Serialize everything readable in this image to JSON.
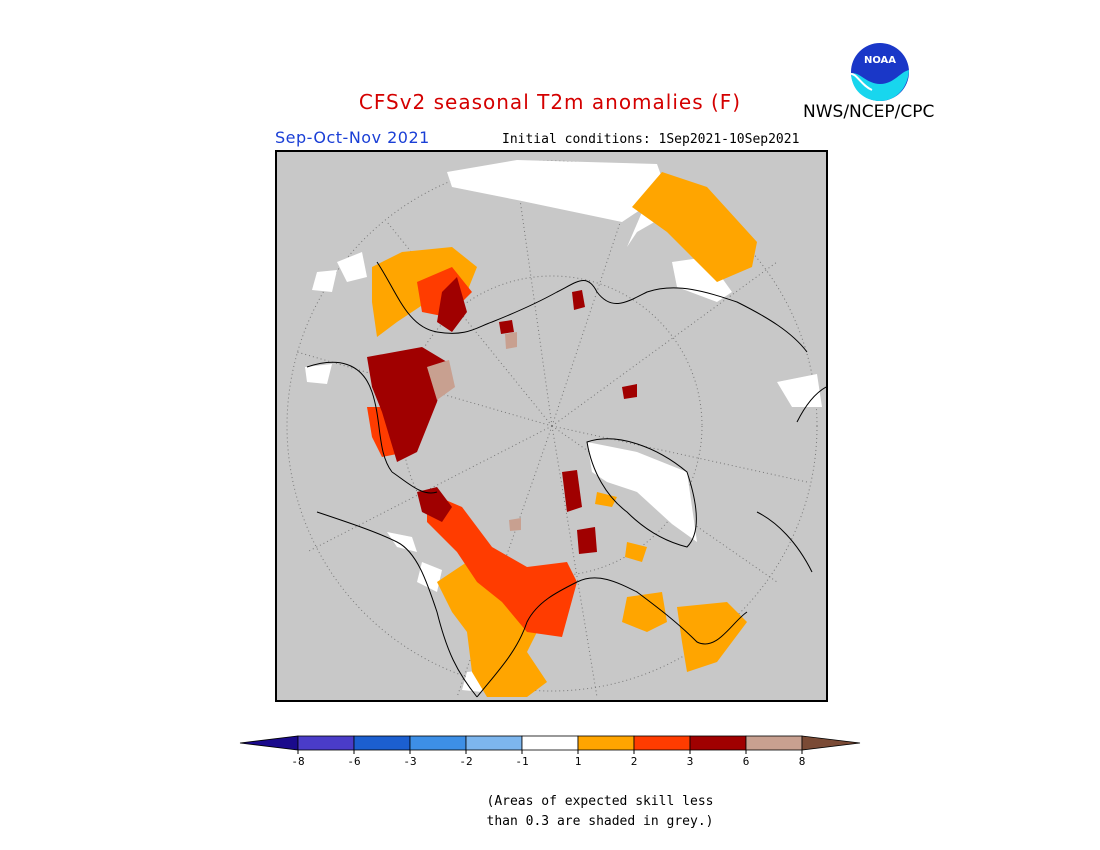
{
  "header": {
    "title": "CFSv2 seasonal T2m anomalies (F)",
    "season": "Sep-Oct-Nov 2021",
    "initial_conditions": "Initial conditions: 1Sep2021-10Sep2021",
    "agency": "NWS/NCEP/CPC",
    "logo_text": "NOAA",
    "logo_icon": "noaa-logo-icon"
  },
  "map": {
    "projection": "north-polar-stereographic",
    "background_color": "#c8c8c8",
    "grid": "dotted-lat-lon"
  },
  "colorbar": {
    "levels": [
      "-8",
      "-6",
      "-3",
      "-2",
      "-1",
      "1",
      "2",
      "3",
      "6",
      "8"
    ],
    "colors": [
      "#1a0a8c",
      "#4a3cc8",
      "#1c5fd0",
      "#3d8fe6",
      "#7db6ee",
      "#ffffff",
      "#ffa500",
      "#ff3c00",
      "#a00000",
      "#c8a090",
      "#7a4a35"
    ]
  },
  "note": {
    "line1": "(Areas of expected skill less",
    "line2": "than 0.3 are shaded in grey.)"
  }
}
